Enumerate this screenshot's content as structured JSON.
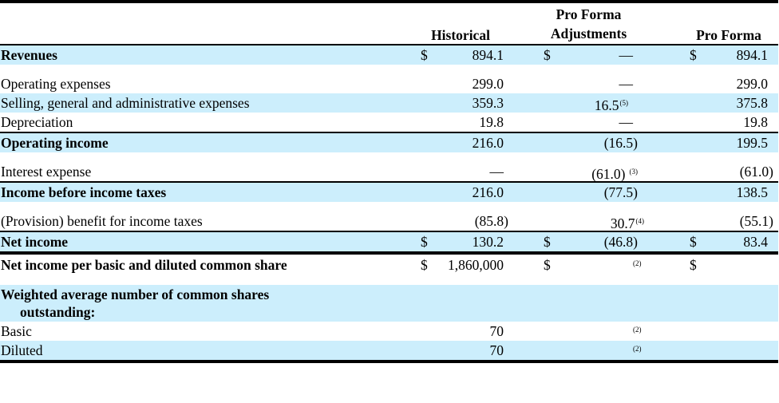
{
  "headers": {
    "historical": "Historical",
    "adjustments_line1": "Pro Forma",
    "adjustments_line2": "Adjustments",
    "pro_forma": "Pro Forma"
  },
  "rows": {
    "revenues": {
      "label": "Revenues",
      "h_dollar": "$",
      "historical": "894.1",
      "a_dollar": "$",
      "adjustments": "—",
      "p_dollar": "$",
      "pro_forma": "894.1"
    },
    "operating_expenses": {
      "label": "Operating expenses",
      "historical": "299.0",
      "adjustments": "—",
      "pro_forma": "299.0"
    },
    "sga": {
      "label": "Selling, general and administrative expenses",
      "historical": "359.3",
      "adjustments": "16.5",
      "adjustments_note": "(5)",
      "pro_forma": "375.8"
    },
    "depreciation": {
      "label": "Depreciation",
      "historical": "19.8",
      "adjustments": "—",
      "pro_forma": "19.8"
    },
    "operating_income": {
      "label": "Operating income",
      "historical": "216.0",
      "adjustments": "(16.5)",
      "pro_forma": "199.5"
    },
    "interest_expense": {
      "label": "Interest expense",
      "historical": "—",
      "adjustments": "(61.0)",
      "adjustments_note": "(3)",
      "pro_forma": "(61.0)"
    },
    "income_before_taxes": {
      "label": "Income before income taxes",
      "historical": "216.0",
      "adjustments": "(77.5)",
      "pro_forma": "138.5"
    },
    "taxes": {
      "label": "(Provision) benefit for income taxes",
      "historical": "(85.8)",
      "adjustments": "30.7",
      "adjustments_note": "(4)",
      "pro_forma": "(55.1)"
    },
    "net_income": {
      "label": "Net income",
      "h_dollar": "$",
      "historical": "130.2",
      "a_dollar": "$",
      "adjustments": "(46.8)",
      "p_dollar": "$",
      "pro_forma": "83.4"
    },
    "net_income_per_share": {
      "label": "Net income per basic and diluted common share",
      "h_dollar": "$",
      "historical": "1,860,000",
      "a_dollar": "$",
      "adjustments_note": "(2)",
      "p_dollar": "$"
    },
    "weighted_avg": {
      "label_line1": "Weighted average number of common shares",
      "label_line2": "outstanding:"
    },
    "basic": {
      "label": "Basic",
      "historical": "70",
      "adjustments_note": "(2)"
    },
    "diluted": {
      "label": "Diluted",
      "historical": "70",
      "adjustments_note": "(2)"
    }
  },
  "colors": {
    "shade": "#cceefc",
    "rule": "#000000"
  }
}
